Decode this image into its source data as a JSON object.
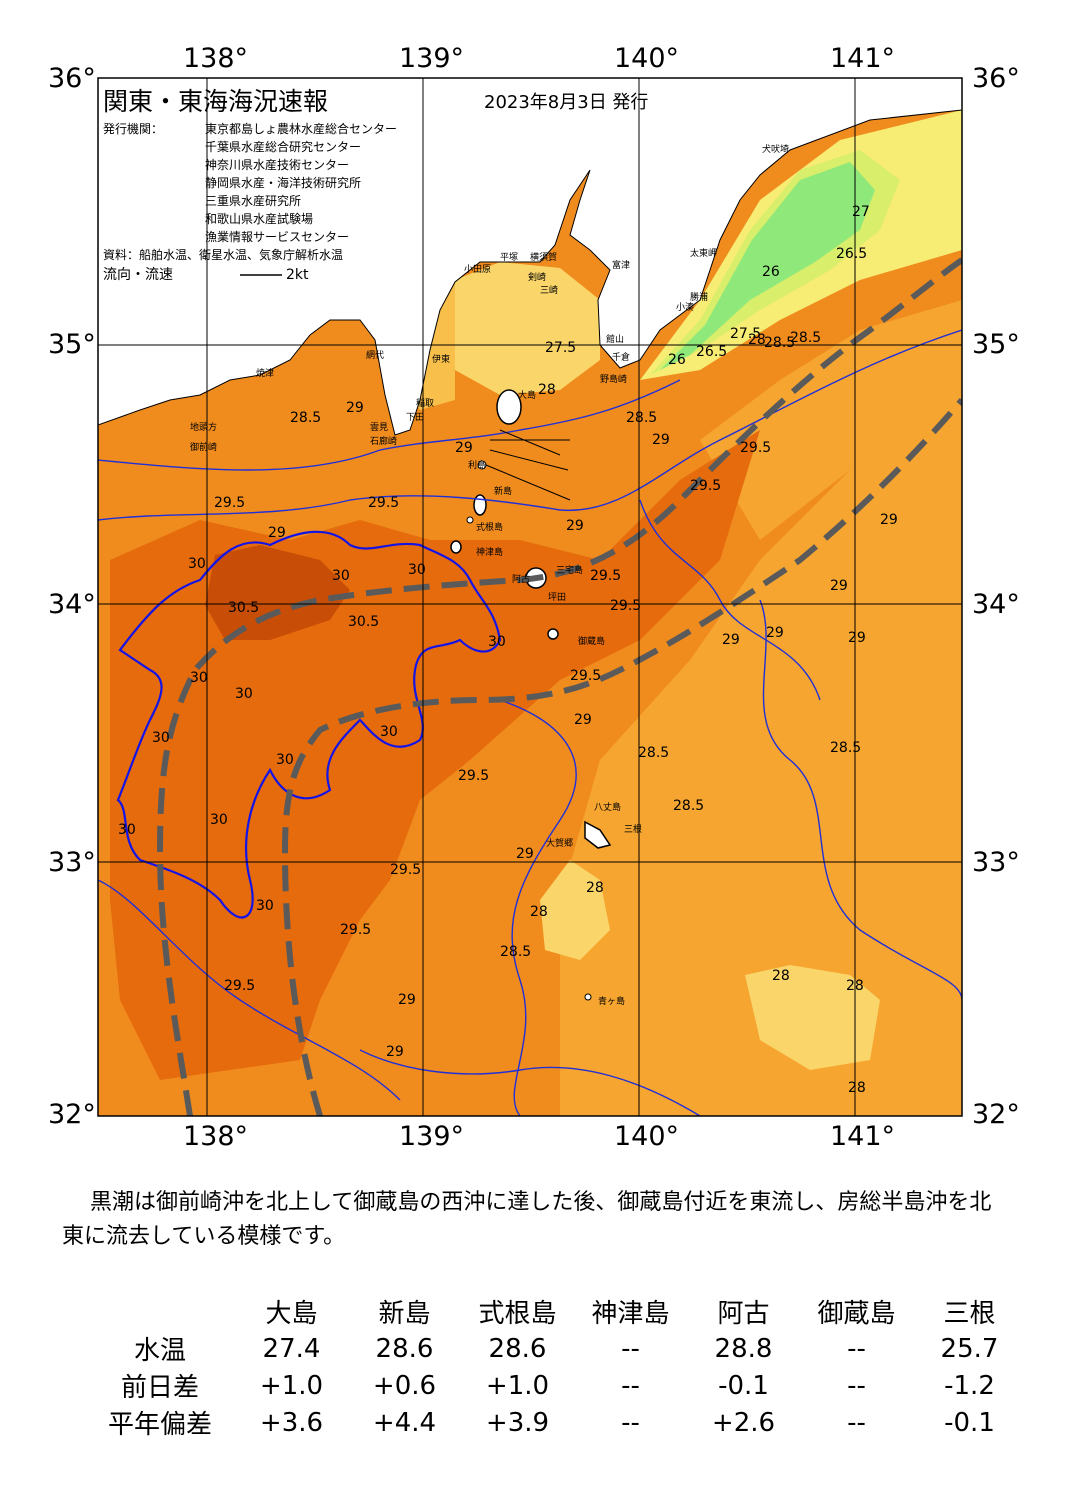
{
  "map": {
    "title": "関東・東海海況速報",
    "issue_date": "2023年8月3日 発行",
    "agency_label": "発行機関：",
    "agencies": [
      "東京都島しょ農林水産総合センター",
      "千葉県水産総合研究センター",
      "神奈川県水産技術センター",
      "静岡県水産・海洋技術研究所",
      "三重県水産研究所",
      "和歌山県水産試験場",
      "漁業情報サービスセンター"
    ],
    "sources": "資料：船舶水温、衛星水温、気象庁解析水温",
    "flow_label": "流向・流速",
    "flow_scale": "2kt",
    "lon_labels": [
      "138°",
      "139°",
      "140°",
      "141°"
    ],
    "lat_labels": [
      "36°",
      "35°",
      "34°",
      "33°",
      "32°"
    ],
    "place_names": [
      "犬吠埼",
      "太東岬",
      "勝浦",
      "小湊",
      "館山",
      "千倉",
      "野島崎",
      "富津",
      "横須賀",
      "剣崎",
      "三崎",
      "平塚",
      "小田原",
      "網代",
      "伊東",
      "稲取",
      "下田",
      "石廊崎",
      "雲見",
      "焼津",
      "地頭方",
      "御前崎",
      "大島",
      "利島",
      "新島",
      "式根島",
      "神津島",
      "三宅島",
      "阿古",
      "坪田",
      "御蔵島",
      "八丈島",
      "三根",
      "大賀郷",
      "青ヶ島"
    ],
    "contour_labels": [
      "27.5",
      "28",
      "28.5",
      "29",
      "29.5",
      "30",
      "30.5",
      "26",
      "26.5",
      "27"
    ]
  },
  "colors": {
    "land": "#ffffff",
    "t_29_29_5": "#f08c1e",
    "t_29_5_30": "#e56b0c",
    "t_30_up": "#c84e08",
    "t_28_5_29": "#f5a530",
    "t_28_28_5": "#f8c04a",
    "t_27_5_28": "#fad66a",
    "t_27_27_5": "#f7ec74",
    "t_26_5_27": "#d9ee6a",
    "t_below_26_5": "#8fe97a",
    "isotherm_blue": "#2030d8",
    "isotherm_30": "#1414e6",
    "kuroshio_axis": "#5a5a5a"
  },
  "summary": "黒潮は御前崎沖を北上して御蔵島の西沖に達した後、御蔵島付近を東流し、房総半島沖を北東に流去している模様です。",
  "table": {
    "headers": [
      "大島",
      "新島",
      "式根島",
      "神津島",
      "阿古",
      "御蔵島",
      "三根"
    ],
    "rows": [
      {
        "label": "水温",
        "values": [
          "27.4",
          "28.6",
          "28.6",
          "--",
          "28.8",
          "--",
          "25.7"
        ]
      },
      {
        "label": "前日差",
        "values": [
          "+1.0",
          "+0.6",
          "+1.0",
          "--",
          "-0.1",
          "--",
          "-1.2"
        ]
      },
      {
        "label": "平年偏差",
        "values": [
          "+3.6",
          "+4.4",
          "+3.9",
          "--",
          "+2.6",
          "--",
          "-0.1"
        ]
      }
    ]
  }
}
